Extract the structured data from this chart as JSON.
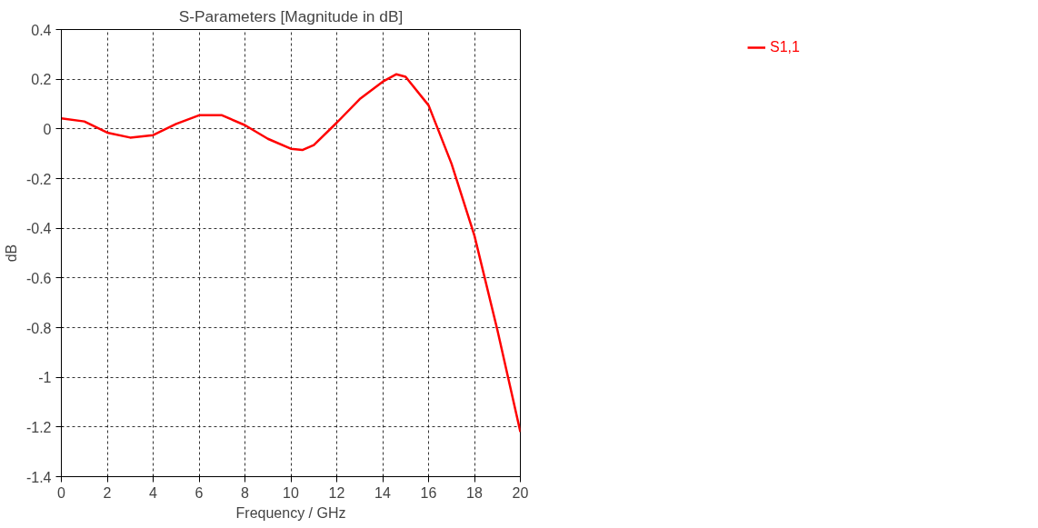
{
  "chart_data": {
    "type": "line",
    "title": "S-Parameters [Magnitude in dB]",
    "xlabel": "Frequency / GHz",
    "ylabel": "dB",
    "x": [
      0,
      1,
      2,
      3,
      4,
      5,
      6,
      7,
      8,
      9,
      10,
      10.5,
      11,
      12,
      13,
      14,
      14.6,
      15,
      16,
      17,
      18,
      19,
      20
    ],
    "series": [
      {
        "name": "S1,1",
        "color": "#ff0000",
        "values": [
          0.042,
          0.03,
          -0.015,
          -0.035,
          -0.025,
          0.02,
          0.055,
          0.055,
          0.015,
          -0.04,
          -0.08,
          -0.085,
          -0.065,
          0.025,
          0.12,
          0.19,
          0.22,
          0.21,
          0.095,
          -0.14,
          -0.43,
          -0.81,
          -1.22
        ]
      }
    ],
    "xlim": [
      0,
      20
    ],
    "ylim": [
      -1.4,
      0.4
    ],
    "xticks": [
      0,
      2,
      4,
      6,
      8,
      10,
      12,
      14,
      16,
      18,
      20
    ],
    "yticks": [
      -1.4,
      -1.2,
      -1,
      -0.8,
      -0.6,
      -0.4,
      -0.2,
      0,
      0.2,
      0.4
    ],
    "grid": true,
    "legend": "top right",
    "line_style": "solid"
  }
}
